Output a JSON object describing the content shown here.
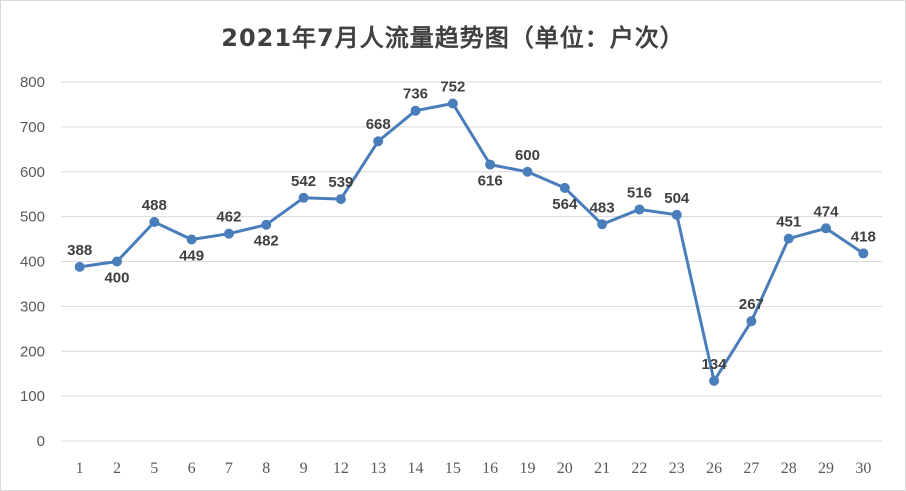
{
  "chart_data": {
    "type": "line",
    "title": "2021年7月人流量趋势图（单位：户次）",
    "xlabel": "",
    "ylabel": "",
    "categories": [
      "1",
      "2",
      "5",
      "6",
      "7",
      "8",
      "9",
      "12",
      "13",
      "14",
      "15",
      "16",
      "19",
      "20",
      "21",
      "22",
      "23",
      "26",
      "27",
      "28",
      "29",
      "30"
    ],
    "series": [
      {
        "values": [
          388,
          400,
          488,
          449,
          462,
          482,
          542,
          539,
          668,
          736,
          752,
          616,
          600,
          564,
          483,
          516,
          504,
          134,
          267,
          451,
          474,
          418
        ]
      }
    ],
    "ylim": [
      0,
      800
    ],
    "yticks": [
      0,
      100,
      200,
      300,
      400,
      500,
      600,
      700,
      800
    ],
    "grid": true,
    "legend": "none",
    "color": "#4a7ebb",
    "label_position": [
      "above",
      "below",
      "above",
      "below",
      "above",
      "below",
      "above",
      "above",
      "above",
      "above",
      "above",
      "below",
      "above",
      "below",
      "above",
      "above",
      "above",
      "above",
      "above",
      "above",
      "above",
      "above"
    ]
  }
}
